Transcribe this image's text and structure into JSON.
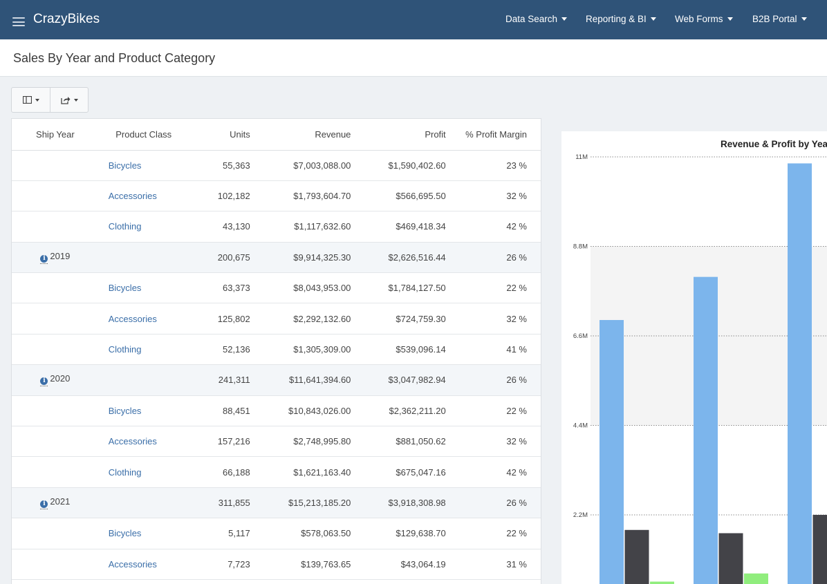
{
  "app": {
    "brand": "CrazyBikes",
    "nav": [
      {
        "label": "Data Search"
      },
      {
        "label": "Reporting & BI"
      },
      {
        "label": "Web Forms"
      },
      {
        "label": "B2B Portal"
      }
    ]
  },
  "page": {
    "title": "Sales By Year and Product Category"
  },
  "table": {
    "headers": {
      "ship_year": "Ship Year",
      "product_class": "Product Class",
      "units": "Units",
      "revenue": "Revenue",
      "profit": "Profit",
      "margin": "% Profit Margin"
    },
    "rows": [
      {
        "year": "",
        "class": "Bicycles",
        "units": "55,363",
        "revenue": "$7,003,088.00",
        "profit": "$1,590,402.60",
        "margin": "23 %"
      },
      {
        "year": "",
        "class": "Accessories",
        "units": "102,182",
        "revenue": "$1,793,604.70",
        "profit": "$566,695.50",
        "margin": "32 %"
      },
      {
        "year": "",
        "class": "Clothing",
        "units": "43,130",
        "revenue": "$1,117,632.60",
        "profit": "$469,418.34",
        "margin": "42 %"
      },
      {
        "year": "2019",
        "class": "",
        "units": "200,675",
        "revenue": "$9,914,325.30",
        "profit": "$2,626,516.44",
        "margin": "26 %"
      },
      {
        "year": "",
        "class": "Bicycles",
        "units": "63,373",
        "revenue": "$8,043,953.00",
        "profit": "$1,784,127.50",
        "margin": "22 %"
      },
      {
        "year": "",
        "class": "Accessories",
        "units": "125,802",
        "revenue": "$2,292,132.60",
        "profit": "$724,759.30",
        "margin": "32 %"
      },
      {
        "year": "",
        "class": "Clothing",
        "units": "52,136",
        "revenue": "$1,305,309.00",
        "profit": "$539,096.14",
        "margin": "41 %"
      },
      {
        "year": "2020",
        "class": "",
        "units": "241,311",
        "revenue": "$11,641,394.60",
        "profit": "$3,047,982.94",
        "margin": "26 %"
      },
      {
        "year": "",
        "class": "Bicycles",
        "units": "88,451",
        "revenue": "$10,843,026.00",
        "profit": "$2,362,211.20",
        "margin": "22 %"
      },
      {
        "year": "",
        "class": "Accessories",
        "units": "157,216",
        "revenue": "$2,748,995.80",
        "profit": "$881,050.62",
        "margin": "32 %"
      },
      {
        "year": "",
        "class": "Clothing",
        "units": "66,188",
        "revenue": "$1,621,163.40",
        "profit": "$675,047.16",
        "margin": "42 %"
      },
      {
        "year": "2021",
        "class": "",
        "units": "311,855",
        "revenue": "$15,213,185.20",
        "profit": "$3,918,308.98",
        "margin": "26 %"
      },
      {
        "year": "",
        "class": "Bicycles",
        "units": "5,117",
        "revenue": "$578,063.50",
        "profit": "$129,638.70",
        "margin": "22 %"
      },
      {
        "year": "",
        "class": "Accessories",
        "units": "7,723",
        "revenue": "$139,763.65",
        "profit": "$43,064.19",
        "margin": "31 %"
      }
    ]
  },
  "chart_data": {
    "type": "bar",
    "title": "Revenue & Profit by Yea",
    "y_ticks": [
      "2.2M",
      "4.4M",
      "6.6M",
      "8.8M",
      "11M"
    ],
    "y_tick_values": [
      2200000,
      4400000,
      6600000,
      8800000,
      11000000
    ],
    "ylim": [
      0,
      11150000
    ],
    "grid": true,
    "groups": [
      {
        "values": [
          6.99,
          1.83,
          0.56
        ]
      },
      {
        "values": [
          8.05,
          1.75,
          0.76
        ]
      },
      {
        "values": [
          10.84,
          2.2
        ]
      }
    ],
    "values_unit": "millions",
    "colors": [
      "#7cb5ec",
      "#434348",
      "#90ed7d"
    ]
  },
  "colors": {
    "navbar": "#2f5378",
    "link": "#3a6ea8",
    "year_row_bg": "#f3f6f9"
  }
}
